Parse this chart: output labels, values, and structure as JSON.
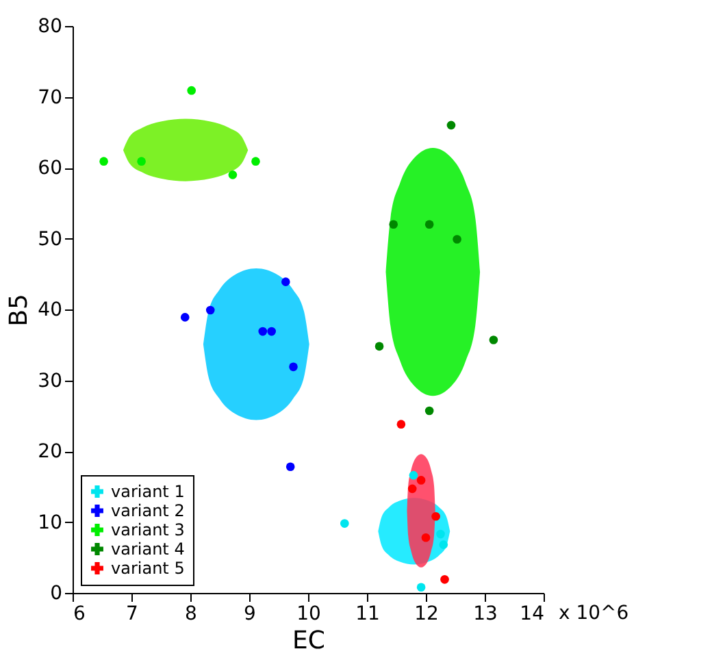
{
  "chart_data": {
    "type": "scatter",
    "xlabel": "EC",
    "ylabel": "B5",
    "xlim": [
      6,
      14
    ],
    "xticks": [
      6,
      7,
      8,
      9,
      10,
      11,
      12,
      13,
      14
    ],
    "annotations": [
      "x 10^6"
    ],
    "ylim": [
      0,
      80
    ],
    "yticks": [
      0,
      10,
      20,
      30,
      40,
      50,
      60,
      70,
      80
    ],
    "grid": false,
    "legend": "bottom left",
    "marker": "circle",
    "series": [
      {
        "type": "line",
        "color": "#00e8ff",
        "x": [
          11.19,
          11.25,
          11.37,
          11.56,
          11.8,
          12.04,
          12.23,
          12.35,
          12.41
        ],
        "values": [
          null,
          null,
          null,
          null,
          null,
          null,
          null,
          null,
          null
        ],
        "lower": [
          8.7,
          6.65,
          5.34,
          4.39,
          4.0,
          4.39,
          5.34,
          6.65,
          8.7
        ],
        "upper": [
          8.7,
          10.75,
          12.06,
          13.01,
          13.4,
          13.01,
          12.06,
          10.75,
          8.7
        ]
      },
      {
        "type": "line",
        "color": "#00c8ff",
        "x": [
          8.22,
          8.31,
          8.49,
          8.76,
          9.12,
          9.48,
          9.75,
          9.93,
          10.02
        ],
        "values": [
          null,
          null,
          null,
          null,
          null,
          null,
          null,
          null,
          null
        ],
        "lower": [
          35.1,
          30.43,
          27.46,
          25.29,
          24.4,
          25.29,
          27.46,
          30.43,
          35.1
        ],
        "upper": [
          35.1,
          39.77,
          42.74,
          44.91,
          45.8,
          44.91,
          42.74,
          39.77,
          35.1
        ]
      },
      {
        "type": "line",
        "color": "#66ee00",
        "x": [
          6.86,
          6.97,
          7.18,
          7.5,
          7.92,
          8.34,
          8.66,
          8.87,
          8.98
        ],
        "values": [
          null,
          null,
          null,
          null,
          null,
          null,
          null,
          null,
          null
        ],
        "lower": [
          62.5,
          60.58,
          59.36,
          58.47,
          58.1,
          58.47,
          59.36,
          60.58,
          62.5
        ],
        "upper": [
          62.5,
          64.42,
          65.64,
          66.53,
          66.9,
          66.53,
          65.64,
          64.42,
          62.5
        ]
      },
      {
        "type": "line",
        "color": "#00ee00",
        "x": [
          11.32,
          11.4,
          11.56,
          11.8,
          12.12,
          12.44,
          12.68,
          12.84,
          12.92
        ],
        "values": [
          null,
          null,
          null,
          null,
          null,
          null,
          null,
          null,
          null
        ],
        "lower": [
          45.3,
          37.67,
          32.8,
          29.25,
          27.8,
          29.25,
          32.8,
          37.67,
          45.3
        ],
        "upper": [
          45.3,
          52.93,
          57.8,
          61.35,
          62.8,
          61.35,
          57.8,
          52.93,
          45.3
        ]
      },
      {
        "type": "line",
        "color": "#ff3355",
        "x": [
          11.68,
          11.7,
          11.75,
          11.82,
          11.92,
          12.02,
          12.09,
          12.14,
          12.16
        ],
        "values": [
          null,
          null,
          null,
          null,
          null,
          null,
          null,
          null,
          null
        ],
        "lower": [
          11.6,
          8.11,
          5.89,
          4.26,
          3.6,
          4.26,
          5.89,
          8.11,
          11.6
        ],
        "upper": [
          11.6,
          15.09,
          17.31,
          18.94,
          19.6,
          18.94,
          17.31,
          15.09,
          11.6
        ]
      },
      {
        "name": "variant 1",
        "color": "#00e5ee",
        "x": [
          10.62,
          11.79,
          12.25,
          12.3,
          11.92
        ],
        "values": [
          9.8,
          16.6,
          8.3,
          6.8,
          0.8
        ]
      },
      {
        "name": " variant 2",
        "color": "#0000ff",
        "x": [
          7.91,
          8.34,
          9.62,
          9.75,
          9.7,
          9.23,
          9.38
        ],
        "values": [
          38.9,
          39.9,
          43.9,
          31.9,
          17.8,
          36.9,
          36.9
        ]
      },
      {
        "name": "variant 3",
        "color": "#00ee00",
        "x": [
          6.53,
          7.17,
          8.02,
          8.72,
          9.11
        ],
        "values": [
          60.9,
          60.9,
          70.9,
          59,
          60.9
        ]
      },
      {
        "name": "variant 4",
        "color": "#008800",
        "x": [
          12.43,
          11.45,
          12.06,
          12.53,
          11.21,
          13.15,
          12.06
        ],
        "values": [
          66,
          52,
          52,
          49.9,
          34.8,
          35.7,
          25.7
        ]
      },
      {
        "name": "variant 5",
        "color": "#ff0000",
        "x": [
          11.58,
          11.77,
          11.92,
          12.17,
          12.0,
          12.32
        ],
        "values": [
          23.8,
          14.7,
          15.9,
          10.8,
          7.8,
          1.9
        ]
      }
    ]
  }
}
